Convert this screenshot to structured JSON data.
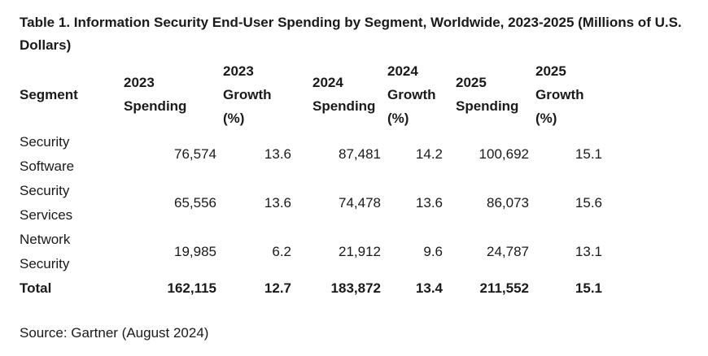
{
  "caption": "Table 1. Information Security End-User Spending by Segment, Worldwide, 2023-2025 (Millions of U.S. Dollars)",
  "table": {
    "headers": [
      "Segment",
      "2023 Spending",
      "2023 Growth (%)",
      "2024 Spending",
      "2024 Growth (%)",
      "2025 Spending",
      "2025 Growth (%)"
    ],
    "rows": [
      [
        "Security Software",
        "76,574",
        "13.6",
        "87,481",
        "14.2",
        "100,692",
        "15.1"
      ],
      [
        "Security Services",
        "65,556",
        "13.6",
        "74,478",
        "13.6",
        "86,073",
        "15.6"
      ],
      [
        "Network Security",
        "19,985",
        "6.2",
        "21,912",
        "9.6",
        "24,787",
        "13.1"
      ]
    ],
    "total": [
      "Total",
      "162,115",
      "12.7",
      "183,872",
      "13.4",
      "211,552",
      "15.1"
    ]
  },
  "source": "Source: Gartner (August 2024)"
}
